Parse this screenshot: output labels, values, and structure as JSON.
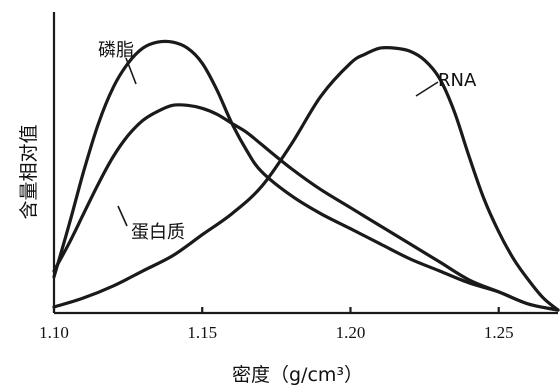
{
  "chart_data": {
    "type": "line",
    "xlabel": "密度（g/cm³）",
    "ylabel": "含量相对值",
    "xlim": [
      1.1,
      1.27
    ],
    "ylim": [
      0,
      1
    ],
    "x_ticks": [
      "1.10",
      "1.15",
      "1.20",
      "1.25"
    ],
    "x_tick_values": [
      1.1,
      1.15,
      1.2,
      1.25
    ],
    "grid": false,
    "series": [
      {
        "name": "磷脂",
        "points": [
          [
            1.1,
            0.12
          ],
          [
            1.105,
            0.29
          ],
          [
            1.11,
            0.47
          ],
          [
            1.115,
            0.63
          ],
          [
            1.12,
            0.75
          ],
          [
            1.125,
            0.83
          ],
          [
            1.13,
            0.88
          ],
          [
            1.135,
            0.9
          ],
          [
            1.14,
            0.9
          ],
          [
            1.145,
            0.88
          ],
          [
            1.15,
            0.83
          ],
          [
            1.155,
            0.74
          ],
          [
            1.16,
            0.63
          ],
          [
            1.165,
            0.54
          ],
          [
            1.17,
            0.47
          ],
          [
            1.18,
            0.39
          ],
          [
            1.19,
            0.33
          ],
          [
            1.2,
            0.28
          ],
          [
            1.21,
            0.23
          ],
          [
            1.22,
            0.18
          ],
          [
            1.23,
            0.14
          ],
          [
            1.24,
            0.1
          ],
          [
            1.25,
            0.07
          ],
          [
            1.26,
            0.03
          ],
          [
            1.27,
            0.01
          ]
        ]
      },
      {
        "name": "蛋白质",
        "points": [
          [
            1.1,
            0.14
          ],
          [
            1.105,
            0.23
          ],
          [
            1.11,
            0.33
          ],
          [
            1.115,
            0.43
          ],
          [
            1.12,
            0.52
          ],
          [
            1.125,
            0.59
          ],
          [
            1.13,
            0.64
          ],
          [
            1.135,
            0.67
          ],
          [
            1.14,
            0.69
          ],
          [
            1.145,
            0.69
          ],
          [
            1.15,
            0.68
          ],
          [
            1.155,
            0.66
          ],
          [
            1.16,
            0.63
          ],
          [
            1.165,
            0.6
          ],
          [
            1.17,
            0.56
          ],
          [
            1.18,
            0.48
          ],
          [
            1.19,
            0.41
          ],
          [
            1.2,
            0.35
          ],
          [
            1.21,
            0.29
          ],
          [
            1.22,
            0.23
          ],
          [
            1.23,
            0.17
          ],
          [
            1.24,
            0.11
          ],
          [
            1.25,
            0.07
          ],
          [
            1.26,
            0.03
          ],
          [
            1.27,
            0.01
          ]
        ]
      },
      {
        "name": "RNA",
        "points": [
          [
            1.1,
            0.02
          ],
          [
            1.11,
            0.05
          ],
          [
            1.12,
            0.09
          ],
          [
            1.13,
            0.14
          ],
          [
            1.14,
            0.19
          ],
          [
            1.15,
            0.26
          ],
          [
            1.16,
            0.33
          ],
          [
            1.17,
            0.42
          ],
          [
            1.18,
            0.56
          ],
          [
            1.19,
            0.72
          ],
          [
            1.2,
            0.83
          ],
          [
            1.205,
            0.86
          ],
          [
            1.21,
            0.88
          ],
          [
            1.215,
            0.88
          ],
          [
            1.22,
            0.87
          ],
          [
            1.225,
            0.84
          ],
          [
            1.23,
            0.78
          ],
          [
            1.235,
            0.67
          ],
          [
            1.24,
            0.52
          ],
          [
            1.245,
            0.38
          ],
          [
            1.25,
            0.27
          ],
          [
            1.255,
            0.18
          ],
          [
            1.26,
            0.11
          ],
          [
            1.265,
            0.05
          ],
          [
            1.27,
            0.01
          ]
        ]
      }
    ]
  }
}
